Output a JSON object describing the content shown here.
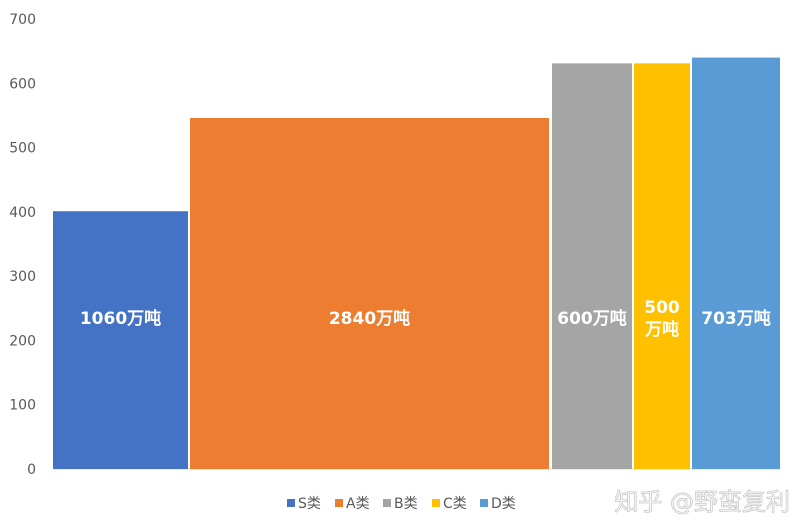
{
  "chart_data": {
    "type": "bar",
    "variant": "variable-width (marimekko)",
    "categories": [
      "S类",
      "A类",
      "B类",
      "C类",
      "D类"
    ],
    "values": [
      401,
      546,
      631,
      631,
      640
    ],
    "bar_labels": [
      [
        "1060万吨"
      ],
      [
        "2840万吨"
      ],
      [
        "600万吨"
      ],
      [
        "500",
        "万吨"
      ],
      [
        "703万吨"
      ]
    ],
    "ylim": [
      0,
      700
    ],
    "yticks": [
      0,
      100,
      200,
      300,
      400,
      500,
      600,
      700
    ],
    "grid": false,
    "legend_position": "bottom",
    "colors": [
      "#4472C4",
      "#ED7D31",
      "#A5A5A5",
      "#FFC000",
      "#5B9BD5"
    ]
  },
  "watermark": "知乎 @野蛮复利"
}
